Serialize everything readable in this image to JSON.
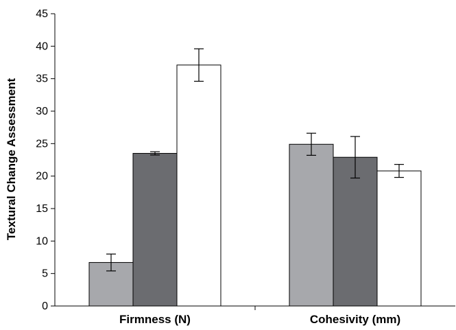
{
  "chart_data": {
    "type": "bar",
    "categories": [
      "Firmness (N)",
      "Cohesivity (mm)"
    ],
    "series": [
      {
        "values": [
          6.7,
          24.9
        ],
        "errors": [
          1.3,
          1.7
        ],
        "color": "#a7a8ac"
      },
      {
        "values": [
          23.5,
          22.9
        ],
        "errors": [
          0.25,
          3.2
        ],
        "color": "#6b6c70"
      },
      {
        "values": [
          37.1,
          20.8
        ],
        "errors": [
          2.5,
          1.0
        ],
        "color": "#ffffff"
      }
    ],
    "title": "",
    "xlabel": "",
    "ylabel": "Textural Change Assessment",
    "ylim": [
      0,
      45
    ],
    "yticks": [
      0,
      5,
      10,
      15,
      20,
      25,
      30,
      35,
      40,
      45
    ],
    "grid": false,
    "legend": "none"
  }
}
